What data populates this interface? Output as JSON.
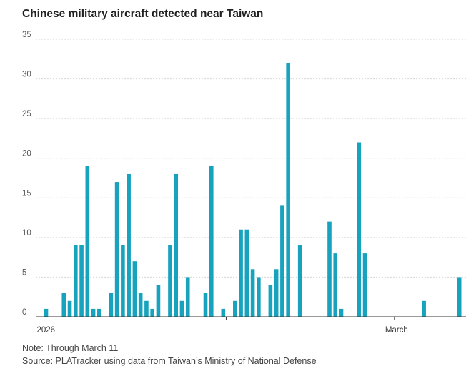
{
  "chart_data": {
    "type": "bar",
    "title": "Chinese military aircraft detected near Taiwan",
    "xlabel": "",
    "ylabel": "",
    "ylim": [
      0,
      35
    ],
    "yticks": [
      0,
      5,
      10,
      15,
      20,
      25,
      30,
      35
    ],
    "x_tick_labels": [
      {
        "day": 1,
        "label": "2026"
      },
      {
        "day": 60,
        "label": "March"
      }
    ],
    "x_range_days": [
      1,
      71
    ],
    "days": [
      1,
      2,
      3,
      4,
      5,
      6,
      7,
      8,
      9,
      10,
      11,
      12,
      13,
      14,
      15,
      16,
      17,
      18,
      19,
      20,
      21,
      22,
      23,
      24,
      25,
      26,
      27,
      28,
      29,
      30,
      31,
      32,
      33,
      34,
      35,
      36,
      37,
      38,
      39,
      40,
      41,
      42,
      43,
      44,
      45,
      46,
      47,
      48,
      49,
      50,
      51,
      52,
      53,
      54,
      55,
      56,
      57,
      58,
      59,
      60,
      61,
      62,
      63,
      64,
      65,
      66,
      67,
      68,
      69,
      70,
      71
    ],
    "values": [
      1,
      0,
      0,
      3,
      2,
      9,
      9,
      19,
      1,
      1,
      0,
      3,
      17,
      9,
      18,
      7,
      3,
      2,
      1,
      4,
      0,
      9,
      18,
      2,
      5,
      0,
      0,
      3,
      19,
      0,
      1,
      0,
      2,
      11,
      11,
      6,
      5,
      0,
      4,
      6,
      14,
      32,
      0,
      9,
      0,
      0,
      0,
      0,
      12,
      8,
      1,
      0,
      0,
      22,
      8,
      0,
      0,
      0,
      0,
      0,
      0,
      0,
      0,
      0,
      2,
      0,
      0,
      0,
      0,
      0,
      5
    ]
  },
  "notes": {
    "note": "Note: Through March 11",
    "source": "Source: PLATracker using data from Taiwan’s Ministry of National Defense"
  }
}
